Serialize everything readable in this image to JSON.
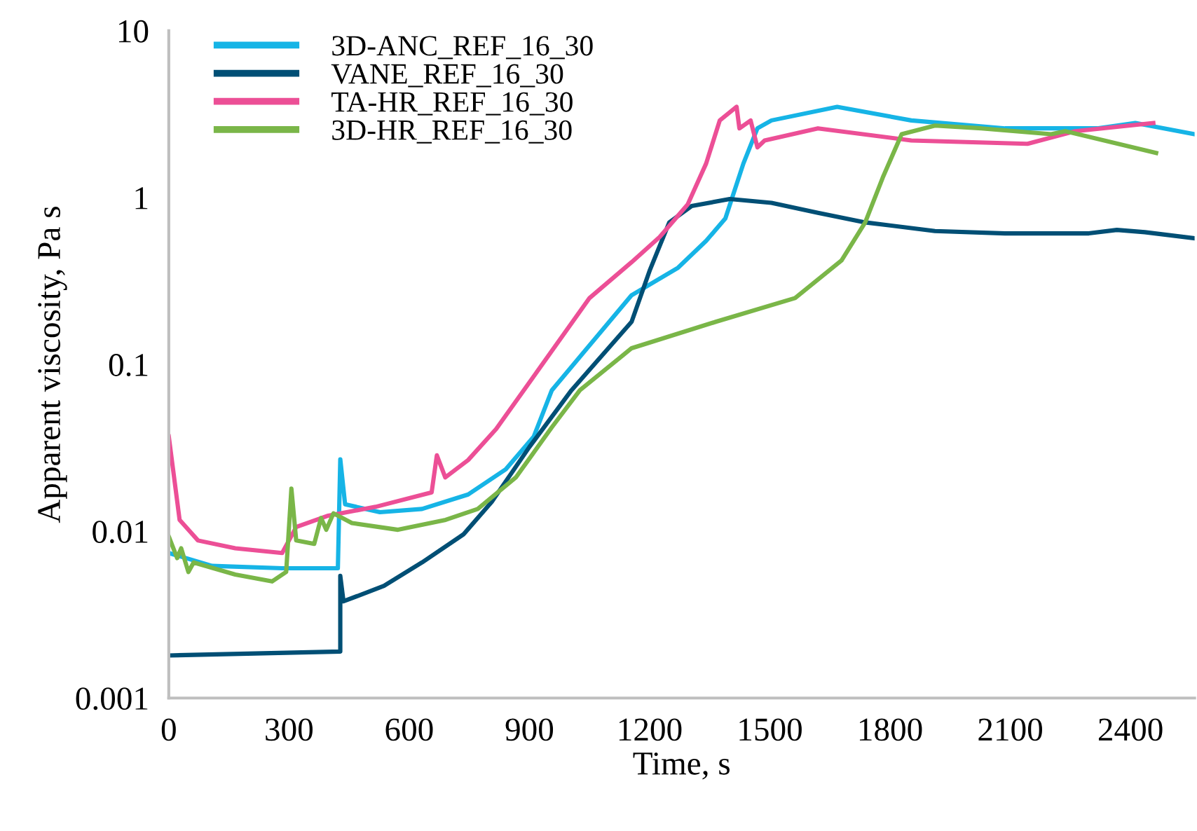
{
  "chart_data": {
    "type": "line",
    "xlabel": "Time, s",
    "ylabel": "Apparent viscosity, Pa s",
    "log": "y",
    "xlim": [
      0,
      2560
    ],
    "xticks": [
      0,
      300,
      600,
      900,
      1200,
      1500,
      1800,
      2100,
      2400
    ],
    "ylim": [
      0.001,
      10
    ],
    "yticks": [
      {
        "value": 0.001,
        "label": "0.001"
      },
      {
        "value": 0.01,
        "label": "0.01"
      },
      {
        "value": 0.1,
        "label": "0.1"
      },
      {
        "value": 1,
        "label": "1"
      },
      {
        "value": 10,
        "label": "10"
      }
    ],
    "grid": false,
    "legend": "top left",
    "marker": "none",
    "line_style": "solid",
    "series": [
      {
        "name": "3D-ANC_REF_16_30",
        "color": "#16b4e6",
        "x": [
          0,
          108,
          283,
          422,
          428,
          440,
          527,
          632,
          747,
          841,
          911,
          956,
          1155,
          1271,
          1341,
          1389,
          1434,
          1469,
          1504,
          1668,
          1853,
          2087,
          2317,
          2412,
          2560
        ],
        "values": [
          0.0074,
          0.0062,
          0.006,
          0.006,
          0.027,
          0.0145,
          0.013,
          0.0136,
          0.0166,
          0.0235,
          0.037,
          0.07,
          0.26,
          0.38,
          0.55,
          0.75,
          1.6,
          2.6,
          2.9,
          3.5,
          2.9,
          2.6,
          2.6,
          2.8,
          2.4
        ]
      },
      {
        "name": "VANE_REF_16_30",
        "color": "#004f75",
        "x": [
          0,
          428,
          428,
          436,
          537,
          632,
          736,
          806,
          900,
          1005,
          1155,
          1201,
          1249,
          1305,
          1400,
          1504,
          1620,
          1738,
          1912,
          2087,
          2296,
          2366,
          2436,
          2560
        ],
        "values": [
          0.0018,
          0.0019,
          0.0054,
          0.0038,
          0.0047,
          0.0065,
          0.0096,
          0.015,
          0.032,
          0.07,
          0.18,
          0.37,
          0.71,
          0.89,
          0.98,
          0.93,
          0.81,
          0.71,
          0.63,
          0.61,
          0.61,
          0.64,
          0.62,
          0.57
        ]
      },
      {
        "name": "TA-HR_REF_16_30",
        "color": "#ec4f96",
        "x": [
          0,
          27,
          73,
          166,
          283,
          318,
          398,
          516,
          656,
          669,
          690,
          747,
          817,
          886,
          1050,
          1155,
          1225,
          1295,
          1341,
          1375,
          1417,
          1424,
          1452,
          1469,
          1487,
          1620,
          1853,
          2143,
          2262,
          2457
        ],
        "values": [
          0.037,
          0.0117,
          0.0088,
          0.0079,
          0.0074,
          0.0106,
          0.0124,
          0.014,
          0.0171,
          0.0285,
          0.021,
          0.0267,
          0.041,
          0.07,
          0.25,
          0.41,
          0.58,
          0.91,
          1.6,
          2.9,
          3.5,
          2.6,
          2.9,
          2.0,
          2.2,
          2.6,
          2.2,
          2.1,
          2.5,
          2.8
        ]
      },
      {
        "name": "3D-HR_REF_16_30",
        "color": "#7ab648",
        "x": [
          0,
          21,
          31,
          49,
          62,
          166,
          258,
          293,
          306,
          318,
          363,
          380,
          393,
          411,
          457,
          572,
          691,
          771,
          866,
          956,
          1026,
          1155,
          1365,
          1563,
          1679,
          1738,
          1783,
          1829,
          1912,
          2028,
          2202,
          2237,
          2464
        ],
        "values": [
          0.0093,
          0.0069,
          0.0079,
          0.0057,
          0.0065,
          0.0055,
          0.005,
          0.0057,
          0.018,
          0.0088,
          0.0084,
          0.012,
          0.0102,
          0.0128,
          0.0112,
          0.0102,
          0.0117,
          0.0136,
          0.021,
          0.042,
          0.07,
          0.125,
          0.18,
          0.25,
          0.42,
          0.71,
          1.34,
          2.4,
          2.7,
          2.6,
          2.4,
          2.5,
          1.85
        ]
      }
    ]
  }
}
